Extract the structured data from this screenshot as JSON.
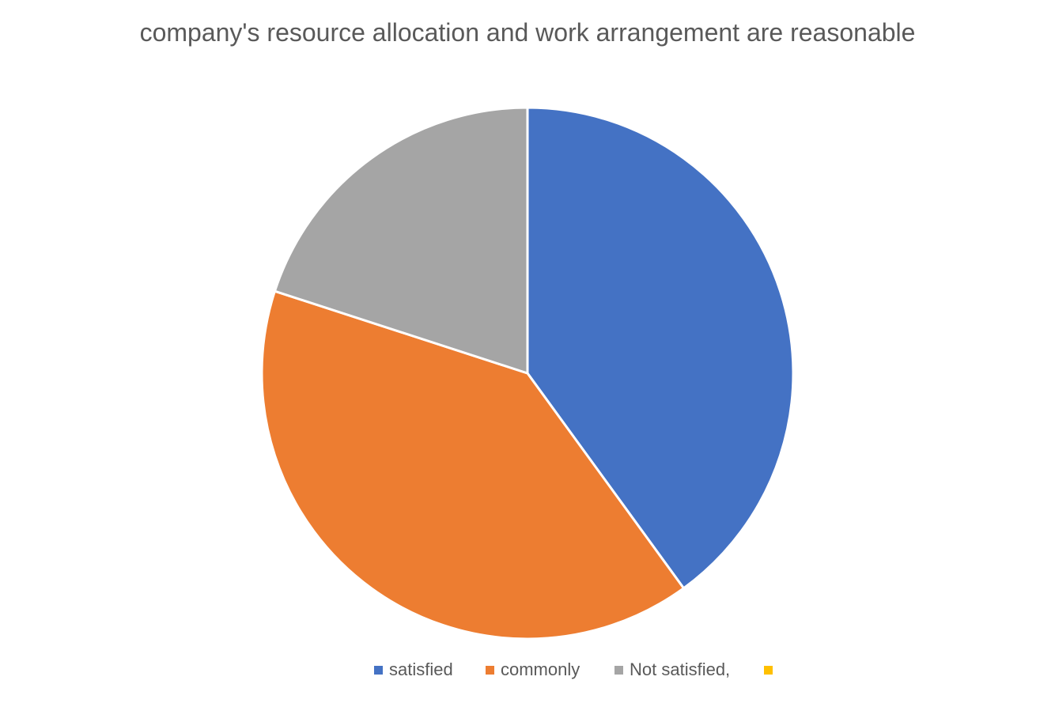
{
  "chart_data": {
    "type": "pie",
    "title": "company's resource allocation and work arrangement are reasonable",
    "categories": [
      "satisfied",
      "commonly",
      "Not satisfied,",
      ""
    ],
    "values": [
      40,
      40,
      20,
      0
    ],
    "colors": [
      "#4472C4",
      "#ED7D31",
      "#A5A5A5",
      "#FFC000"
    ],
    "legend_position": "bottom"
  }
}
